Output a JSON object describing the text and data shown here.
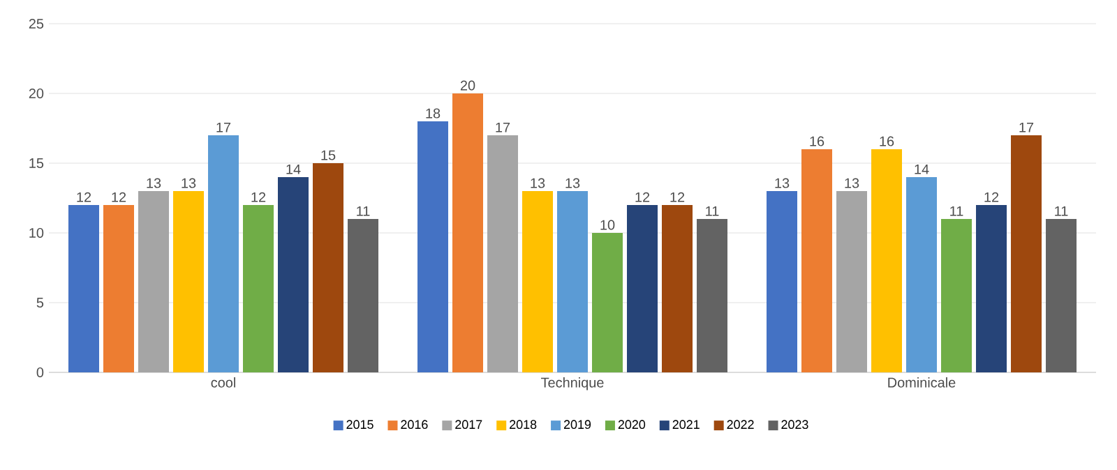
{
  "chart_data": {
    "type": "bar",
    "categories": [
      "cool",
      "Technique",
      "Dominicale"
    ],
    "series": [
      {
        "name": "2015",
        "color": "#4472c4",
        "values": [
          12,
          18,
          13
        ]
      },
      {
        "name": "2016",
        "color": "#ed7d31",
        "values": [
          12,
          20,
          16
        ]
      },
      {
        "name": "2017",
        "color": "#a5a5a5",
        "values": [
          13,
          17,
          13
        ]
      },
      {
        "name": "2018",
        "color": "#ffc000",
        "values": [
          13,
          13,
          16
        ]
      },
      {
        "name": "2019",
        "color": "#5b9bd5",
        "values": [
          17,
          13,
          14
        ]
      },
      {
        "name": "2020",
        "color": "#70ad47",
        "values": [
          12,
          10,
          11
        ]
      },
      {
        "name": "2021",
        "color": "#264478",
        "values": [
          14,
          12,
          12
        ]
      },
      {
        "name": "2022",
        "color": "#9e480e",
        "values": [
          15,
          12,
          17
        ]
      },
      {
        "name": "2023",
        "color": "#636363",
        "values": [
          11,
          11,
          11
        ]
      }
    ],
    "ylim": [
      0,
      25
    ],
    "yticks": [
      0,
      5,
      10,
      15,
      20,
      25
    ],
    "grid": "y",
    "legend": "bottom",
    "data_labels": true
  }
}
